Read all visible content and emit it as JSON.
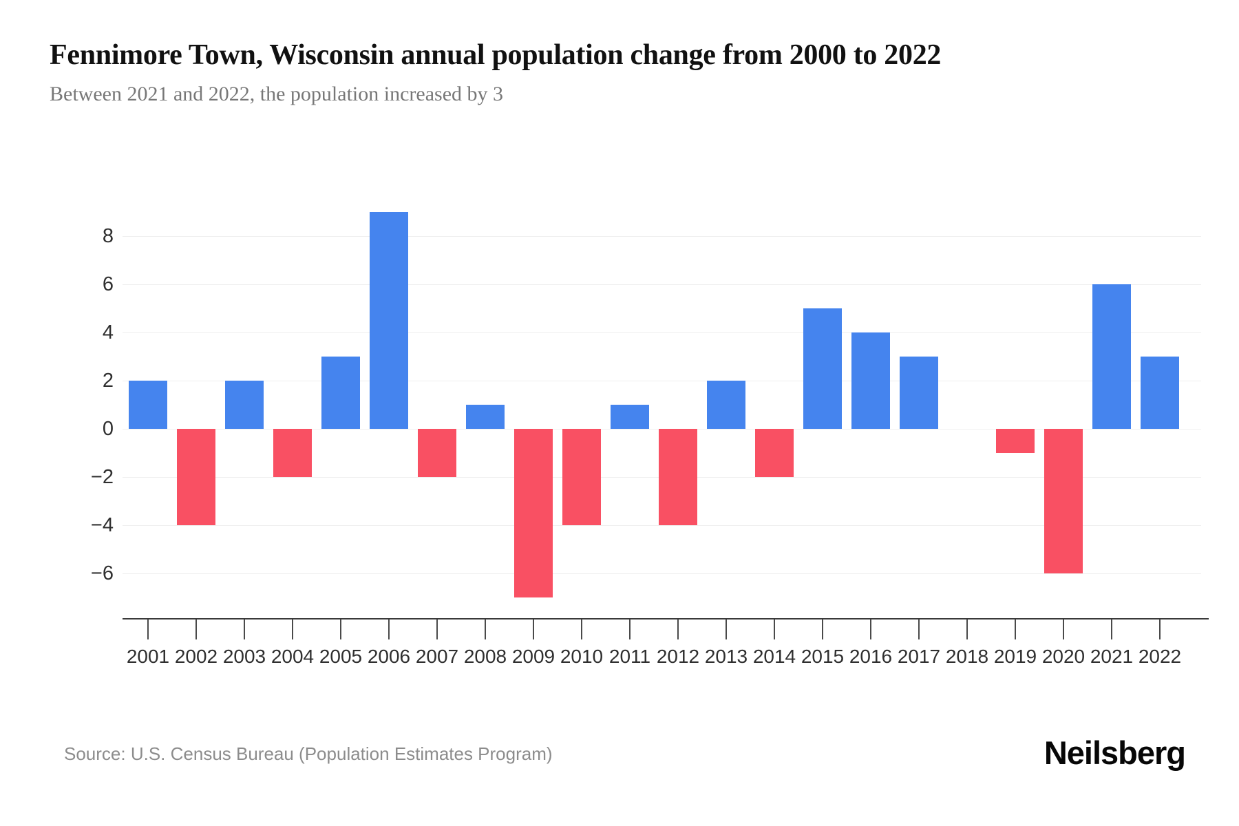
{
  "header": {
    "title": "Fennimore Town, Wisconsin annual population change from 2000 to 2022",
    "subtitle": "Between 2021 and 2022, the population increased by 3"
  },
  "chart_data": {
    "type": "bar",
    "title": "Fennimore Town, Wisconsin annual population change from 2000 to 2022",
    "xlabel": "",
    "ylabel": "",
    "categories": [
      "2001",
      "2002",
      "2003",
      "2004",
      "2005",
      "2006",
      "2007",
      "2008",
      "2009",
      "2010",
      "2011",
      "2012",
      "2013",
      "2014",
      "2015",
      "2016",
      "2017",
      "2018",
      "2019",
      "2020",
      "2021",
      "2022"
    ],
    "values": [
      2,
      -4,
      2,
      -2,
      3,
      9,
      -2,
      1,
      -7,
      -4,
      1,
      -4,
      2,
      -2,
      5,
      4,
      3,
      0,
      -1,
      -6,
      6,
      3
    ],
    "y_tick_values": [
      8,
      6,
      4,
      2,
      0,
      -2,
      -4,
      -6
    ],
    "y_tick_labels": [
      "8",
      "6",
      "4",
      "2",
      "0",
      "−2",
      "−4",
      "−6"
    ],
    "ylim": [
      -7.5,
      9.5
    ],
    "grid": true,
    "legend": false,
    "colors": {
      "positive_bar": "#4584EE",
      "negative_bar": "#F95063",
      "gridline": "#efefef",
      "axis": "#3a3a3a",
      "tick_label": "#2f2f2f"
    }
  },
  "footer": {
    "source": "Source: U.S. Census Bureau (Population Estimates Program)",
    "brand": "Neilsberg"
  }
}
